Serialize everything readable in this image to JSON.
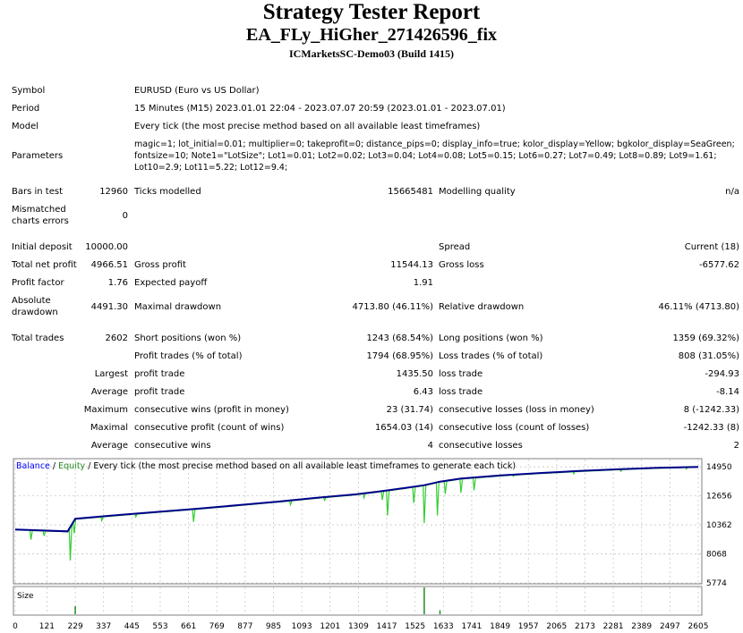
{
  "title": "Strategy Tester Report",
  "ea_name": "EA_FLy_HiGher_271426596_fix",
  "server": "ICMarketsSC-Demo03 (Build 1415)",
  "settings": {
    "symbol_label": "Symbol",
    "symbol": "EURUSD (Euro vs US Dollar)",
    "period_label": "Period",
    "period": "15 Minutes (M15) 2023.01.01 22:04 - 2023.07.07 20:59 (2023.01.01 - 2023.07.01)",
    "model_label": "Model",
    "model": "Every tick (the most precise method based on all available least timeframes)",
    "parameters_label": "Parameters",
    "parameters": "magic=1; lot_initial=0.01; multiplier=0; takeprofit=0; distance_pips=0; display_info=true; kolor_display=Yellow; bgkolor_display=SeaGreen; fontsize=10; Note1=\"LotSize\"; Lot1=0.01; Lot2=0.02; Lot3=0.04; Lot4=0.08; Lot5=0.15; Lot6=0.27; Lot7=0.49; Lot8=0.89; Lot9=1.61; Lot10=2.9; Lot11=5.22; Lot12=9.4;"
  },
  "stats": {
    "bars_label": "Bars in test",
    "bars": "12960",
    "ticks_label": "Ticks modelled",
    "ticks": "15665481",
    "quality_label": "Modelling quality",
    "quality": "n/a",
    "mismatched_label": "Mismatched charts errors",
    "mismatched": "0",
    "initial_deposit_label": "Initial deposit",
    "initial_deposit": "10000.00",
    "spread_label": "Spread",
    "spread": "Current (18)",
    "total_net_profit_label": "Total net profit",
    "total_net_profit": "4966.51",
    "gross_profit_label": "Gross profit",
    "gross_profit": "11544.13",
    "gross_loss_label": "Gross loss",
    "gross_loss": "-6577.62",
    "profit_factor_label": "Profit factor",
    "profit_factor": "1.76",
    "expected_payoff_label": "Expected payoff",
    "expected_payoff": "1.91",
    "absolute_drawdown_label": "Absolute drawdown",
    "absolute_drawdown": "4491.30",
    "maximal_drawdown_label": "Maximal drawdown",
    "maximal_drawdown": "4713.80 (46.11%)",
    "relative_drawdown_label": "Relative drawdown",
    "relative_drawdown": "46.11% (4713.80)",
    "total_trades_label": "Total trades",
    "total_trades": "2602",
    "short_label": "Short positions (won %)",
    "short": "1243 (68.54%)",
    "long_label": "Long positions (won %)",
    "long": "1359 (69.32%)",
    "profit_trades_label": "Profit trades (% of total)",
    "profit_trades": "1794 (68.95%)",
    "loss_trades_label": "Loss trades (% of total)",
    "loss_trades": "808 (31.05%)",
    "largest_label": "Largest",
    "largest_profit_label": "profit trade",
    "largest_profit": "1435.50",
    "largest_loss_label": "loss trade",
    "largest_loss": "-294.93",
    "average_label": "Average",
    "average_profit_label": "profit trade",
    "average_profit": "6.43",
    "average_loss_label": "loss trade",
    "average_loss": "-8.14",
    "maximum_label": "Maximum",
    "max_cons_wins_label": "consecutive wins (profit in money)",
    "max_cons_wins": "23 (31.74)",
    "max_cons_losses_label": "consecutive losses (loss in money)",
    "max_cons_losses": "8 (-1242.33)",
    "maximal_label": "Maximal",
    "maximal_cons_profit_label": "consecutive profit (count of wins)",
    "maximal_cons_profit": "1654.03 (14)",
    "maximal_cons_loss_label": "consecutive loss (count of losses)",
    "maximal_cons_loss": "-1242.33 (8)",
    "average2_label": "Average",
    "avg_cons_wins_label": "consecutive wins",
    "avg_cons_wins": "4",
    "avg_cons_losses_label": "consecutive losses",
    "avg_cons_losses": "2"
  },
  "chart_data": {
    "type": "line",
    "legend": {
      "balance": "Balance",
      "separator": " / ",
      "equity": "Equity",
      "description": " / Every tick (the most precise method based on all available least timeframes to generate each tick)"
    },
    "size_label": "Size",
    "y_ticks": [
      "14950",
      "12656",
      "10362",
      "8068",
      "5774"
    ],
    "y_tick_values": [
      14950,
      12656,
      10362,
      8068,
      5774
    ],
    "ylim": [
      5774,
      15527
    ],
    "x_ticks": [
      "0",
      "121",
      "229",
      "337",
      "445",
      "553",
      "661",
      "769",
      "877",
      "985",
      "1093",
      "1201",
      "1309",
      "1417",
      "1525",
      "1633",
      "1741",
      "1849",
      "1957",
      "2065",
      "2173",
      "2281",
      "2389",
      "2497",
      "2605"
    ],
    "xlim": [
      0,
      2605
    ],
    "balance": [
      [
        0,
        10000
      ],
      [
        200,
        9850
      ],
      [
        229,
        10850
      ],
      [
        400,
        11150
      ],
      [
        550,
        11400
      ],
      [
        700,
        11650
      ],
      [
        850,
        11920
      ],
      [
        1000,
        12200
      ],
      [
        1150,
        12500
      ],
      [
        1300,
        12780
      ],
      [
        1400,
        13030
      ],
      [
        1500,
        13320
      ],
      [
        1560,
        13500
      ],
      [
        1620,
        13780
      ],
      [
        1700,
        14020
      ],
      [
        1850,
        14270
      ],
      [
        2000,
        14460
      ],
      [
        2150,
        14620
      ],
      [
        2300,
        14760
      ],
      [
        2450,
        14880
      ],
      [
        2605,
        14950
      ]
    ],
    "equity_dips": [
      [
        60,
        9200
      ],
      [
        110,
        9500
      ],
      [
        170,
        9850
      ],
      [
        210,
        7550
      ],
      [
        225,
        9700
      ],
      [
        330,
        10700
      ],
      [
        460,
        11000
      ],
      [
        680,
        10600
      ],
      [
        1050,
        11950
      ],
      [
        1180,
        12300
      ],
      [
        1330,
        12500
      ],
      [
        1400,
        12350
      ],
      [
        1420,
        11100
      ],
      [
        1520,
        12100
      ],
      [
        1560,
        10500
      ],
      [
        1610,
        11100
      ],
      [
        1640,
        12800
      ],
      [
        1700,
        12900
      ],
      [
        1750,
        13100
      ],
      [
        1900,
        14200
      ],
      [
        2130,
        14400
      ],
      [
        2310,
        14600
      ],
      [
        2560,
        14780
      ],
      [
        2610,
        14600
      ]
    ],
    "size_bars": [
      [
        229,
        0.3
      ],
      [
        1560,
        1.0
      ],
      [
        1620,
        0.15
      ]
    ]
  },
  "colors": {
    "balance": "#00008b",
    "equity": "#32cd32",
    "grid": "#c0c0c0",
    "title_blue": "#0000ff"
  }
}
